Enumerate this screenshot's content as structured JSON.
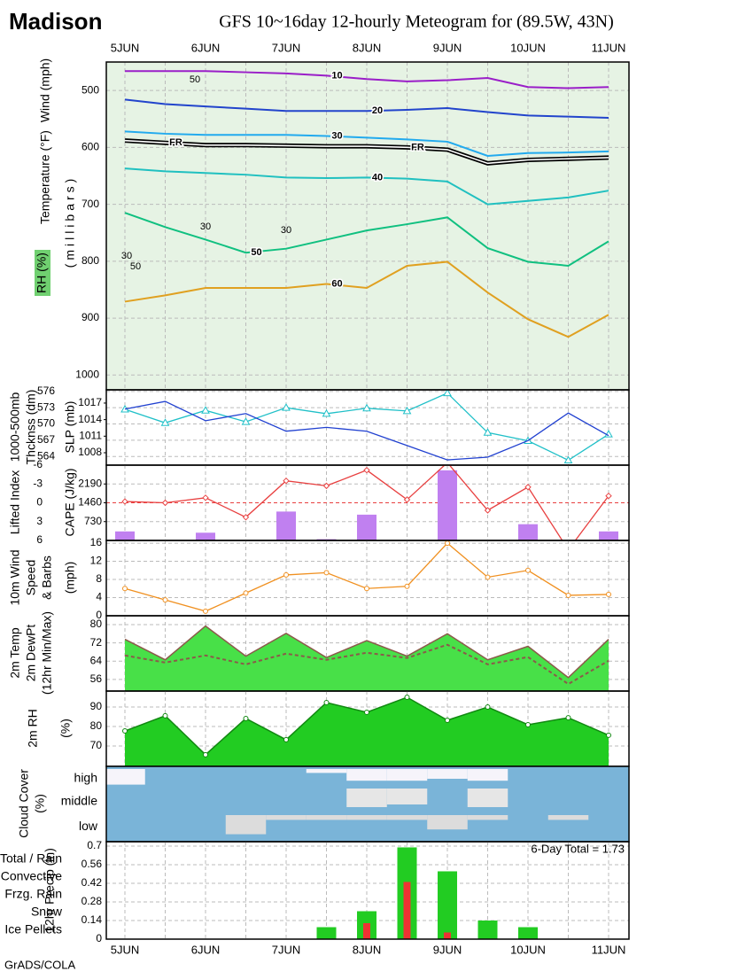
{
  "header": {
    "title": "Madison",
    "subtitle": "GFS 10~16day 12-hourly Meteogram for (89.5W, 43N)"
  },
  "x_axis": {
    "categories": [
      "5JUN",
      null,
      "6JUN",
      null,
      "7JUN",
      null,
      "8JUN",
      null,
      "9JUN",
      null,
      "10JUN",
      null,
      "11JUN"
    ]
  },
  "footer": "GrADS/COLA",
  "chart_data": [
    {
      "type": "contour",
      "ylabel": [
        "Wind (mph)",
        "Temperature (°F)",
        "RH (%)",
        "(millibars)"
      ],
      "ylim": [
        1026,
        450
      ],
      "yticks": [
        500,
        600,
        700,
        800,
        900,
        1000
      ],
      "grid": true,
      "background": "#e6f3e4",
      "series": [
        {
          "name": "10",
          "color": "#9a1ec8",
          "values": [
            466,
            466,
            466,
            468,
            470,
            474,
            480,
            484,
            482,
            478,
            494,
            496,
            494
          ]
        },
        {
          "name": "20",
          "color": "#2244cc",
          "values": [
            516,
            524,
            528,
            532,
            536,
            536,
            536,
            534,
            531,
            538,
            544,
            546,
            548
          ]
        },
        {
          "name": "30",
          "color": "#22aaee",
          "values": [
            572,
            576,
            578,
            578,
            578,
            580,
            583,
            586,
            590,
            615,
            610,
            609,
            607
          ]
        },
        {
          "name": "FR",
          "color": "#000000",
          "values": [
            588,
            592,
            596,
            596,
            597,
            598,
            598,
            600,
            604,
            628,
            622,
            620,
            618
          ]
        },
        {
          "name": "40",
          "color": "#20c0c0",
          "values": [
            637,
            642,
            645,
            648,
            653,
            654,
            653,
            655,
            660,
            700,
            694,
            688,
            676
          ]
        },
        {
          "name": "50",
          "color": "#10c080",
          "values": [
            715,
            740,
            762,
            785,
            778,
            762,
            746,
            735,
            723,
            777,
            801,
            808,
            765
          ]
        },
        {
          "name": "60",
          "color": "#e0a020",
          "values": [
            871,
            860,
            847,
            847,
            847,
            840,
            847,
            808,
            801,
            855,
            902,
            933,
            894
          ]
        }
      ],
      "rh_labels": [
        "50",
        "30",
        "30",
        "30",
        "50"
      ]
    },
    {
      "type": "line",
      "ylabel": [
        "1000-500mb",
        "Thcknss (dm)"
      ],
      "ylabel2": "SLP (mb)",
      "ylim": [
        562.4,
        576.3
      ],
      "yticks": [
        564,
        567,
        570,
        573,
        576
      ],
      "y2lim": [
        1005.75,
        1019.4
      ],
      "y2ticks": [
        1008,
        1011,
        1014,
        1017
      ],
      "grid": true,
      "series": [
        {
          "color": "#20c0c8",
          "marker": "triangle",
          "values": [
            572.7,
            570.2,
            572.5,
            570.4,
            573.0,
            571.9,
            572.9,
            572.4,
            575.7,
            568.4,
            566.9,
            563.3,
            568.1
          ]
        },
        {
          "color": "#2040d0",
          "axis": "y2",
          "values": [
            1015.9,
            1017.3,
            1013.8,
            1015.1,
            1011.9,
            1012.6,
            1011.9,
            1009.3,
            1006.7,
            1007.2,
            1010.2,
            1015.2,
            1011.1
          ]
        }
      ]
    },
    {
      "type": "combo",
      "ylabel": "Lifted Index",
      "ylabel2": "CAPE (J/kg)",
      "ylim": [
        6,
        -6
      ],
      "yticks": [
        -6,
        -3,
        0,
        3,
        6
      ],
      "y2lim": [
        0,
        2920
      ],
      "y2ticks": [
        730,
        1460,
        2190
      ],
      "grid": true,
      "series": [
        {
          "type": "bar",
          "axis": "y2",
          "color": "#c080f0",
          "values": [
            350,
            0,
            300,
            0,
            1120,
            50,
            1000,
            0,
            2720,
            0,
            630,
            0,
            350
          ]
        },
        {
          "type": "line",
          "color": "#e84040",
          "marker": "diamond",
          "values": [
            -0.2,
            0,
            -0.8,
            2.3,
            -3.5,
            -2.7,
            -5.2,
            -0.5,
            -6.4,
            1.2,
            -2.5,
            7.5,
            -1.1
          ]
        }
      ]
    },
    {
      "type": "line",
      "ylabel": [
        "10m Wind",
        "Speed",
        "& Barbs"
      ],
      "ylabel2": "(mph)",
      "ylim": [
        0,
        16.6
      ],
      "yticks": [
        0,
        4,
        8,
        12,
        16
      ],
      "grid": true,
      "series": [
        {
          "color": "#f09020",
          "marker": "circle",
          "values": [
            6,
            3.5,
            1,
            5,
            9,
            9.5,
            6,
            6.5,
            16,
            8.5,
            10,
            4.5,
            4.7
          ]
        }
      ]
    },
    {
      "type": "area",
      "ylabel": [
        "2m Temp",
        "2m DewPt",
        "(12hr Min/Max)"
      ],
      "ylim": [
        50.9,
        83.9
      ],
      "yticks": [
        56,
        64,
        72,
        80
      ],
      "grid": true,
      "series": [
        {
          "type": "area",
          "color": "#48e048",
          "line_color": "#8b5a4a",
          "values": [
            73.6,
            64.6,
            79.4,
            66.2,
            76.2,
            65.6,
            73.0,
            66.2,
            76.0,
            64.6,
            70.5,
            56.8,
            73.6
          ]
        },
        {
          "type": "dashed",
          "color": "#8b5a4a",
          "values": [
            66.5,
            63.4,
            66.5,
            62.6,
            67.3,
            64.6,
            67.7,
            65.4,
            71.2,
            62.6,
            65.8,
            54.0,
            64.2
          ]
        }
      ]
    },
    {
      "type": "area",
      "ylabel": "2m RH",
      "ylabel2": "(%)",
      "ylim": [
        59.5,
        98.2
      ],
      "yticks": [
        70,
        80,
        90
      ],
      "grid": true,
      "series": [
        {
          "type": "area",
          "color": "#22cc22",
          "line_color": "#118811",
          "marker": "circle",
          "values": [
            77.7,
            85.5,
            65.5,
            84.1,
            73.2,
            92.3,
            87.3,
            95,
            83.2,
            90,
            80.9,
            84.5,
            75.5
          ]
        }
      ]
    },
    {
      "type": "cloud",
      "ylabel": "Cloud Cover",
      "ylabel2": "(%)",
      "background": "#7ab4d8",
      "series": [
        {
          "name": "high",
          "color": "#f6f4fa",
          "values": [
            80,
            0,
            0,
            0,
            0,
            20,
            60,
            60,
            50,
            60,
            0,
            0,
            0
          ]
        },
        {
          "name": "middle",
          "color": "#e6e6e6",
          "values": [
            0,
            0,
            0,
            0,
            0,
            0,
            70,
            60,
            0,
            70,
            0,
            0,
            0
          ]
        },
        {
          "name": "low",
          "color": "#dcdcdc",
          "values": [
            0,
            0,
            0,
            80,
            20,
            20,
            20,
            20,
            60,
            20,
            0,
            20,
            0
          ]
        }
      ]
    },
    {
      "type": "bar",
      "ylabel2": "12hr Precip (in)",
      "annotation": "6-Day Total = 1.73",
      "ylim": [
        0,
        0.733
      ],
      "yticks": [
        0,
        0.14,
        0.28,
        0.42,
        0.56,
        0.7
      ],
      "grid": true,
      "series": [
        {
          "name": "Total / Rain",
          "color": "#22cc22",
          "values": [
            0,
            0,
            0,
            0,
            0,
            0.09,
            0.21,
            0.69,
            0.51,
            0.14,
            0.09,
            0,
            0
          ]
        },
        {
          "name": "Convective",
          "color": "#ee3333",
          "values": [
            0,
            0,
            0,
            0,
            0,
            0,
            0.12,
            0.43,
            0.05,
            0,
            0,
            0,
            0
          ]
        }
      ],
      "legend": [
        {
          "name": "Frzg. Rain",
          "color": "#f0a030"
        },
        {
          "name": "Snow",
          "color": "#4060f0"
        },
        {
          "name": "Ice Pellets",
          "color": "#30c8e0"
        }
      ]
    }
  ]
}
